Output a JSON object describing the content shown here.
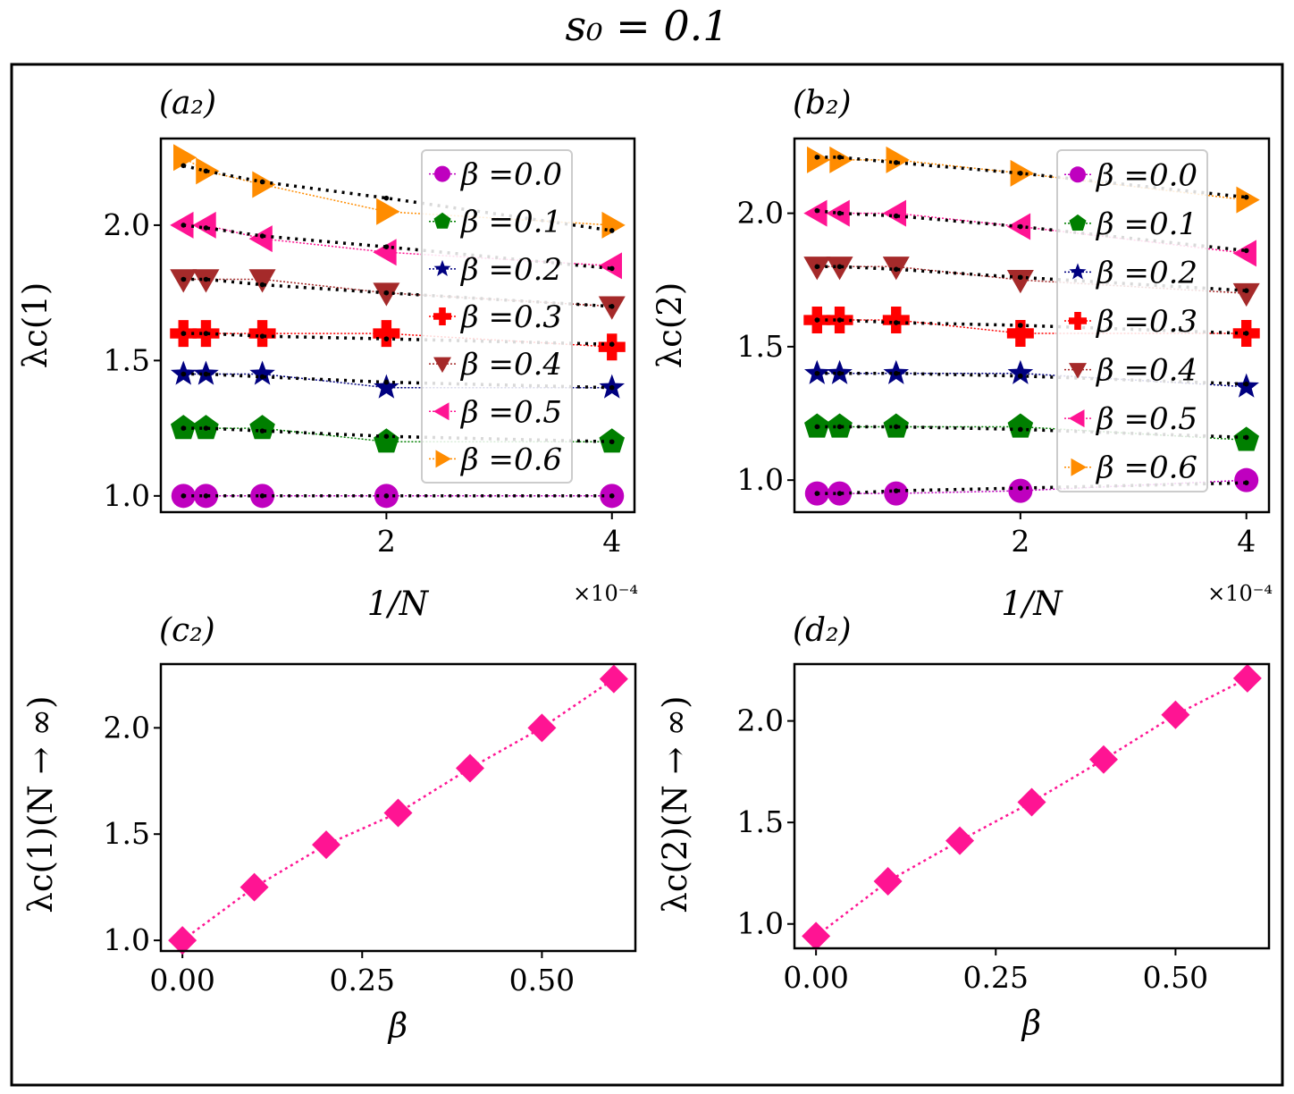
{
  "figure": {
    "title": "s₀ = 0.1"
  },
  "chart_data": [
    {
      "panel": "(a₂)",
      "type": "scatter",
      "xlabel": "1/N",
      "ylabel": "λc(1)",
      "x_offset_label": "×10⁻⁴",
      "x_ticks": [
        "2",
        "4"
      ],
      "y_ticks": [
        "1.0",
        "1.5",
        "2.0"
      ],
      "xlim": [
        0,
        4.2
      ],
      "ylim": [
        0.94,
        2.32
      ],
      "legend": "top-right",
      "x": [
        0.2,
        0.4,
        0.9,
        2.0,
        4.0
      ],
      "series": [
        {
          "name": "β =0.0",
          "marker": "circle",
          "color": "#bf00bf",
          "y": [
            1.0,
            1.0,
            1.0,
            1.0,
            1.0
          ],
          "fit": [
            1.0,
            1.0,
            1.0,
            1.0,
            1.0
          ]
        },
        {
          "name": "β =0.1",
          "marker": "pentagon",
          "color": "#007f00",
          "y": [
            1.25,
            1.25,
            1.25,
            1.2,
            1.2
          ],
          "fit": [
            1.25,
            1.25,
            1.24,
            1.22,
            1.2
          ]
        },
        {
          "name": "β =0.2",
          "marker": "star",
          "color": "#000080",
          "y": [
            1.45,
            1.45,
            1.45,
            1.4,
            1.4
          ],
          "fit": [
            1.45,
            1.45,
            1.44,
            1.42,
            1.4
          ]
        },
        {
          "name": "β =0.3",
          "marker": "plus",
          "color": "#ff0000",
          "y": [
            1.6,
            1.6,
            1.6,
            1.6,
            1.55
          ],
          "fit": [
            1.6,
            1.6,
            1.59,
            1.58,
            1.56
          ]
        },
        {
          "name": "β =0.4",
          "marker": "triangle-down",
          "color": "#a52a2a",
          "y": [
            1.8,
            1.8,
            1.8,
            1.75,
            1.7
          ],
          "fit": [
            1.8,
            1.8,
            1.78,
            1.75,
            1.7
          ]
        },
        {
          "name": "β =0.5",
          "marker": "triangle-left",
          "color": "#ff1493",
          "y": [
            2.0,
            2.0,
            1.95,
            1.9,
            1.85
          ],
          "fit": [
            2.0,
            1.99,
            1.96,
            1.92,
            1.84
          ]
        },
        {
          "name": "β =0.6",
          "marker": "triangle-right",
          "color": "#ff8c00",
          "y": [
            2.25,
            2.2,
            2.15,
            2.05,
            2.0
          ],
          "fit": [
            2.22,
            2.2,
            2.16,
            2.1,
            1.98
          ]
        }
      ]
    },
    {
      "panel": "(b₂)",
      "type": "scatter",
      "xlabel": "1/N",
      "ylabel": "λc(2)",
      "x_offset_label": "×10⁻⁴",
      "x_ticks": [
        "2",
        "4"
      ],
      "y_ticks": [
        "1.0",
        "1.5",
        "2.0"
      ],
      "xlim": [
        0,
        4.2
      ],
      "ylim": [
        0.88,
        2.28
      ],
      "legend": "top-right",
      "x": [
        0.2,
        0.4,
        0.9,
        2.0,
        4.0
      ],
      "series": [
        {
          "name": "β =0.0",
          "marker": "circle",
          "color": "#bf00bf",
          "y": [
            0.95,
            0.95,
            0.95,
            0.96,
            1.0
          ],
          "fit": [
            0.95,
            0.95,
            0.96,
            0.97,
            0.99
          ]
        },
        {
          "name": "β =0.1",
          "marker": "pentagon",
          "color": "#007f00",
          "y": [
            1.2,
            1.2,
            1.2,
            1.2,
            1.15
          ],
          "fit": [
            1.2,
            1.2,
            1.2,
            1.19,
            1.16
          ]
        },
        {
          "name": "β =0.2",
          "marker": "star",
          "color": "#000080",
          "y": [
            1.4,
            1.4,
            1.4,
            1.4,
            1.35
          ],
          "fit": [
            1.4,
            1.4,
            1.4,
            1.39,
            1.36
          ]
        },
        {
          "name": "β =0.3",
          "marker": "plus",
          "color": "#ff0000",
          "y": [
            1.6,
            1.6,
            1.6,
            1.55,
            1.55
          ],
          "fit": [
            1.6,
            1.6,
            1.59,
            1.58,
            1.55
          ]
        },
        {
          "name": "β =0.4",
          "marker": "triangle-down",
          "color": "#a52a2a",
          "y": [
            1.8,
            1.8,
            1.8,
            1.75,
            1.7
          ],
          "fit": [
            1.8,
            1.8,
            1.79,
            1.76,
            1.71
          ]
        },
        {
          "name": "β =0.5",
          "marker": "triangle-left",
          "color": "#ff1493",
          "y": [
            2.0,
            2.0,
            2.0,
            1.95,
            1.85
          ],
          "fit": [
            2.01,
            2.0,
            1.99,
            1.95,
            1.86
          ]
        },
        {
          "name": "β =0.6",
          "marker": "triangle-right",
          "color": "#ff8c00",
          "y": [
            2.2,
            2.2,
            2.2,
            2.15,
            2.05
          ],
          "fit": [
            2.21,
            2.21,
            2.19,
            2.15,
            2.06
          ]
        }
      ]
    },
    {
      "panel": "(c₂)",
      "type": "line",
      "xlabel": "β",
      "ylabel": "λc(1)(N → ∞)",
      "x_ticks": [
        "0.00",
        "0.25",
        "0.50"
      ],
      "y_ticks": [
        "1.0",
        "1.5",
        "2.0"
      ],
      "xlim": [
        -0.03,
        0.63
      ],
      "ylim": [
        0.95,
        2.3
      ],
      "marker": "diamond",
      "color": "#ff1493",
      "x": [
        0.0,
        0.1,
        0.2,
        0.3,
        0.4,
        0.5,
        0.6
      ],
      "y": [
        1.0,
        1.25,
        1.45,
        1.6,
        1.81,
        2.0,
        2.23
      ]
    },
    {
      "panel": "(d₂)",
      "type": "line",
      "xlabel": "β",
      "ylabel": "λc(2)(N → ∞)",
      "x_ticks": [
        "0.00",
        "0.25",
        "0.50"
      ],
      "y_ticks": [
        "1.0",
        "1.5",
        "2.0"
      ],
      "xlim": [
        -0.03,
        0.63
      ],
      "ylim": [
        0.88,
        2.28
      ],
      "marker": "diamond",
      "color": "#ff1493",
      "x": [
        0.0,
        0.1,
        0.2,
        0.3,
        0.4,
        0.5,
        0.6
      ],
      "y": [
        0.94,
        1.21,
        1.41,
        1.6,
        1.81,
        2.03,
        2.21
      ]
    }
  ]
}
